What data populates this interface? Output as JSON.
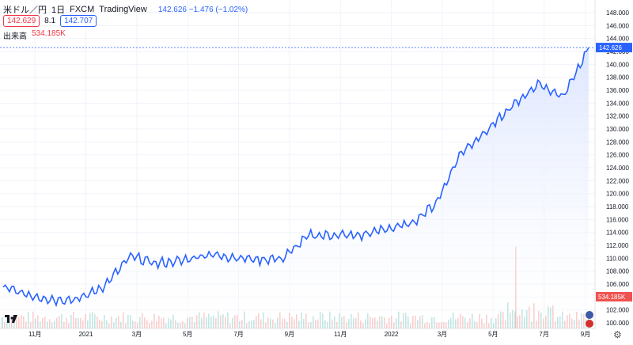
{
  "legend": {
    "symbol": "米ドル／円",
    "interval": "1日",
    "exchange": "FXCM",
    "source": "TradingView",
    "change_text": "142.626  −1.476 (−1.02%)"
  },
  "quote": {
    "bid": "142.629",
    "spread": "8.1",
    "ask": "142.707"
  },
  "volume": {
    "label": "出来高",
    "value": "534.185K"
  },
  "last_price_label": "142.626",
  "volume_label_right": "534.185K",
  "colors": {
    "line": "#2962ff",
    "area_top": "#dbe4ff",
    "up": "#26a69a",
    "down": "#ef5350",
    "grid": "#f0f3fa"
  },
  "chart_data": {
    "type": "area",
    "title": "米ドル／円 1日 FXCM",
    "x_ticks": [
      "11月",
      "2021",
      "3月",
      "5月",
      "7月",
      "9月",
      "11月",
      "2022",
      "3月",
      "5月",
      "7月",
      "9月"
    ],
    "y_ticks": [
      "100.000",
      "102.000",
      "104.000",
      "106.000",
      "108.000",
      "110.000",
      "112.000",
      "114.000",
      "116.000",
      "118.000",
      "120.000",
      "122.000",
      "124.000",
      "126.000",
      "128.000",
      "130.000",
      "132.000",
      "134.000",
      "136.000",
      "138.000",
      "140.000",
      "142.000",
      "144.000",
      "146.000",
      "148.000"
    ],
    "ylim": [
      99,
      149
    ],
    "x": [
      "2020-10",
      "2020-11",
      "2020-12",
      "2021-01",
      "2021-02",
      "2021-03",
      "2021-04",
      "2021-05",
      "2021-06",
      "2021-07",
      "2021-08",
      "2021-09",
      "2021-10",
      "2021-11",
      "2021-12",
      "2022-01",
      "2022-02",
      "2022-03",
      "2022-04",
      "2022-05",
      "2022-06",
      "2022-07",
      "2022-08",
      "2022-09"
    ],
    "series": [
      {
        "values": [
          105.5,
          104.3,
          103.6,
          103.7,
          105.8,
          110.3,
          109.2,
          109.6,
          110.6,
          110.2,
          109.8,
          110.0,
          113.5,
          113.6,
          113.5,
          114.5,
          115.3,
          118.5,
          126.5,
          129.7,
          133.5,
          137.0,
          135.0,
          142.6
        ]
      }
    ]
  }
}
